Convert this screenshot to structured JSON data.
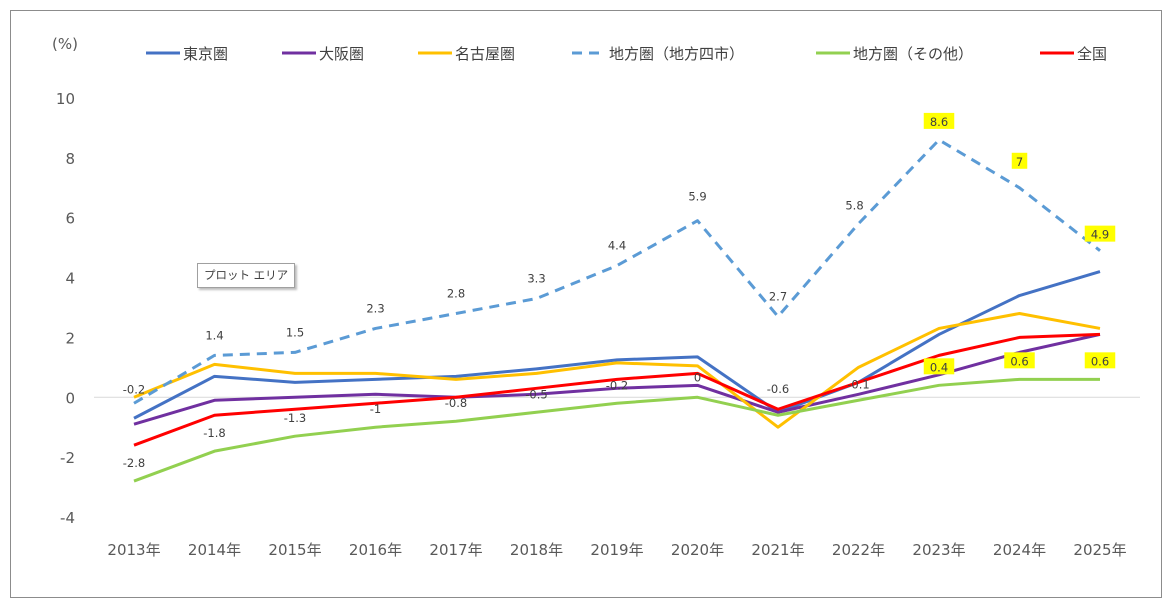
{
  "chart_data": {
    "type": "line",
    "unit_label": "(%)",
    "categories": [
      "2013年",
      "2014年",
      "2015年",
      "2016年",
      "2017年",
      "2018年",
      "2019年",
      "2020年",
      "2021年",
      "2022年",
      "2023年",
      "2024年",
      "2025年"
    ],
    "ylim": [
      -4,
      10
    ],
    "yticks": [
      10,
      8,
      6,
      4,
      2,
      0,
      -2,
      -4
    ],
    "grid": false,
    "legend_position": "top",
    "series": [
      {
        "name": "東京圏",
        "color": "#4472c4",
        "dash": false,
        "values": [
          -0.7,
          0.7,
          0.5,
          0.6,
          0.7,
          0.95,
          1.25,
          1.35,
          -0.5,
          0.5,
          2.1,
          3.4,
          4.2
        ],
        "labels": [
          null,
          null,
          null,
          null,
          null,
          null,
          null,
          null,
          null,
          null,
          null,
          null,
          null
        ]
      },
      {
        "name": "大阪圏",
        "color": "#7030a0",
        "dash": false,
        "values": [
          -0.9,
          -0.1,
          0.0,
          0.1,
          0.0,
          0.1,
          0.3,
          0.4,
          -0.5,
          0.1,
          0.75,
          1.5,
          2.1
        ],
        "labels": [
          null,
          null,
          null,
          null,
          null,
          null,
          null,
          null,
          null,
          null,
          null,
          null,
          null
        ]
      },
      {
        "name": "名古屋圏",
        "color": "#ffc000",
        "dash": false,
        "values": [
          0.0,
          1.1,
          0.8,
          0.8,
          0.6,
          0.8,
          1.15,
          1.05,
          -1.0,
          1.0,
          2.3,
          2.8,
          2.3
        ],
        "labels": [
          null,
          null,
          null,
          null,
          null,
          null,
          null,
          null,
          null,
          null,
          null,
          null,
          null
        ]
      },
      {
        "name": "地方圏（地方四市）",
        "color": "#5b9bd5",
        "dash": true,
        "values": [
          -0.2,
          1.4,
          1.5,
          2.3,
          2.8,
          3.3,
          4.4,
          5.9,
          2.7,
          5.8,
          8.6,
          7.0,
          4.9
        ],
        "labels": [
          "-0.2",
          "1.4",
          "1.5",
          "2.3",
          "2.8",
          "3.3",
          "4.4",
          "5.9",
          "2.7",
          "5.8",
          "8.6",
          "7",
          "4.9"
        ],
        "highlight": [
          false,
          false,
          false,
          false,
          false,
          false,
          false,
          false,
          false,
          false,
          true,
          true,
          true
        ]
      },
      {
        "name": "地方圏（その他）",
        "color": "#92d050",
        "dash": false,
        "values": [
          -2.8,
          -1.8,
          -1.3,
          -1.0,
          -0.8,
          -0.5,
          -0.2,
          0.0,
          -0.6,
          -0.1,
          0.4,
          0.6,
          0.6
        ],
        "labels": [
          "-2.8",
          "-1.8",
          "-1.3",
          "-1",
          "-0.8",
          "-0.5",
          "-0.2",
          "0",
          "-0.6",
          "-0.1",
          "0.4",
          "0.6",
          "0.6"
        ],
        "highlight": [
          false,
          false,
          false,
          false,
          false,
          false,
          false,
          false,
          false,
          false,
          true,
          true,
          true
        ]
      },
      {
        "name": "全国",
        "color": "#ff0000",
        "dash": false,
        "values": [
          -1.6,
          -0.6,
          -0.4,
          -0.2,
          0.0,
          0.3,
          0.6,
          0.8,
          -0.4,
          0.5,
          1.4,
          2.0,
          2.1
        ],
        "labels": [
          null,
          null,
          null,
          null,
          null,
          null,
          null,
          null,
          null,
          null,
          null,
          null,
          null
        ]
      }
    ]
  },
  "tooltip": {
    "text": "プロット エリア"
  },
  "colors": {
    "axis": "#d9d9d9",
    "highlight_bg": "#ffff00",
    "label": "#404040"
  }
}
